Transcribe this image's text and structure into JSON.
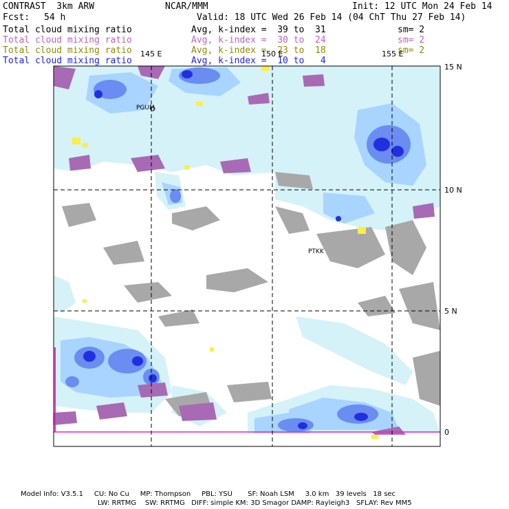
{
  "header": {
    "model": "CONTRAST  3km ARW",
    "org": "NCAR/MMM",
    "init": "Init: 12 UTC Mon 24 Feb 14",
    "fcst_label": "Fcst:",
    "fcst_value": "54 h",
    "valid": "Valid: 18 UTC Wed 26 Feb 14 (04 ChT Thu 27 Feb 14)"
  },
  "legend": [
    {
      "field": "Total cloud mixing ratio",
      "stat": "Avg, k-index =  39 to  31",
      "smooth": "sm= 2",
      "color": "#000000"
    },
    {
      "field": "Total cloud mixing ratio",
      "stat": "Avg, k-index =  30 to  24",
      "smooth": "sm= 2",
      "color": "#c060c0"
    },
    {
      "field": "Total cloud mixing ratio",
      "stat": "Avg, k-index =  23 to  18",
      "smooth": "sm= 2",
      "color": "#8c8c00"
    },
    {
      "field": "Total cloud mixing ratio",
      "stat": "Avg, k-index =  10 to   4",
      "smooth": "",
      "color": "#1a1aff"
    }
  ],
  "map": {
    "lon_labels": [
      "145 E",
      "150 E",
      "155 E"
    ],
    "lat_labels": [
      "15 N",
      "10 N",
      "5 N",
      "0"
    ],
    "stations": [
      "PGUM",
      "PTKK"
    ],
    "colors": {
      "light": "#d4f2f8",
      "mid": "#a8d4ff",
      "blue": "#6b8cf0",
      "deep": "#2030e0",
      "gray": "#a8a8a8",
      "purple": "#a86ab4",
      "yellow": "#ffee44",
      "magenta": "#ee22cc"
    }
  },
  "footer": {
    "line1": "Model Info: V3.5.1     CU: No Cu     MP: Thompson     PBL: YSU       SF: Noah LSM     3.0 km   39 levels   18 sec",
    "line2": "LW: RRTMG    SW: RRTMG   DIFF: simple KM: 3D Smagor DAMP: Rayleigh3   SFLAY: Rev MM5"
  }
}
